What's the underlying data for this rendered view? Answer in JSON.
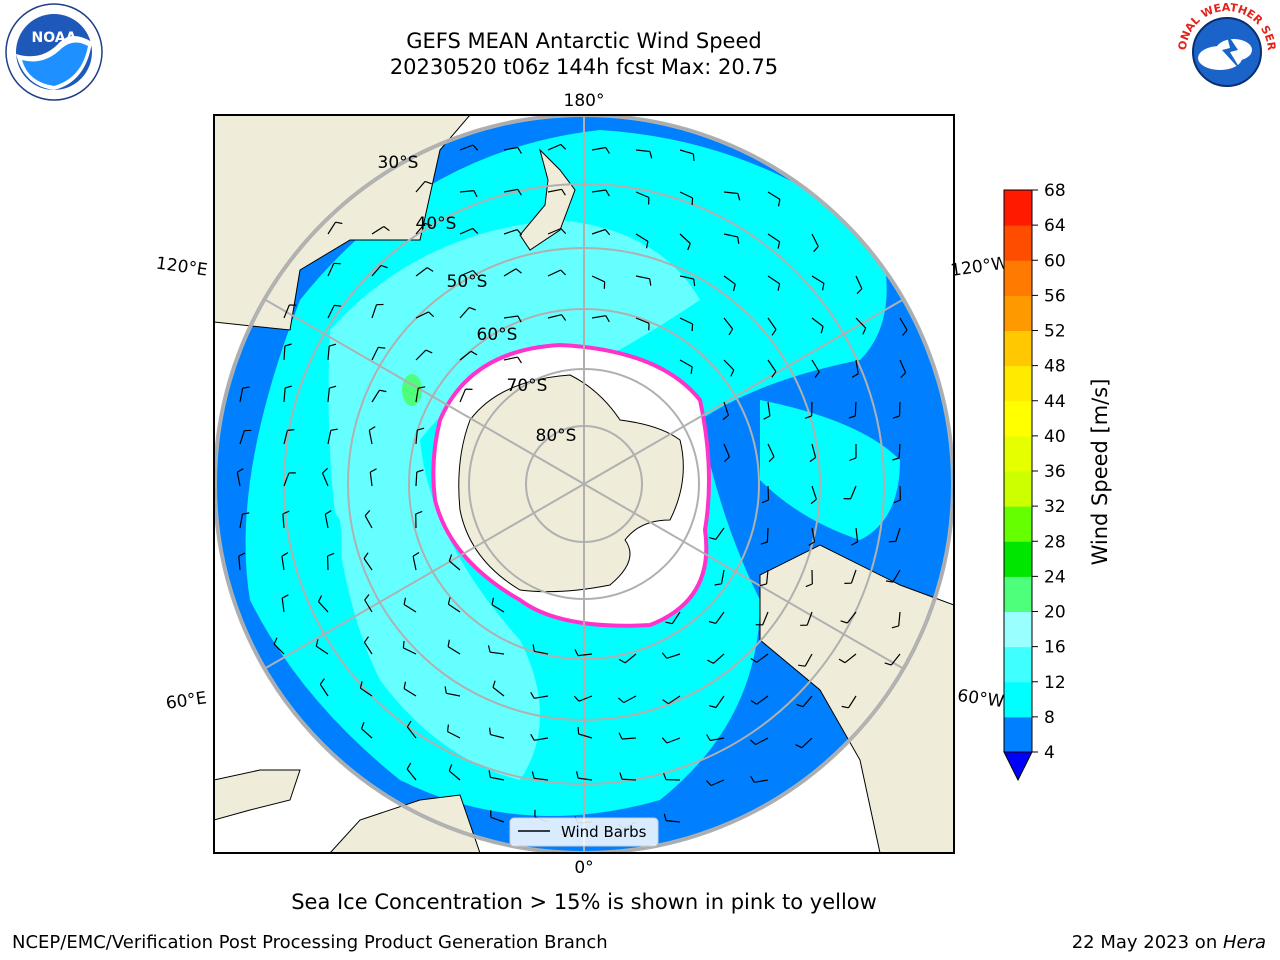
{
  "title": {
    "line1": "GEFS MEAN Antarctic Wind Speed",
    "line2": "20230520 t06z 144h fcst   Max: 20.75"
  },
  "map": {
    "projection": "south-polar-stereographic",
    "lon_labels": [
      "180°",
      "120°E",
      "120°W",
      "60°E",
      "60°W",
      "0°"
    ],
    "lat_labels": [
      "30°S",
      "40°S",
      "50°S",
      "60°S",
      "70°S",
      "80°S"
    ],
    "legend_label": "Wind Barbs",
    "colors": {
      "land": "#efedda",
      "ocean_low": "#0080ff",
      "ocean_mid": "#00ffff",
      "ocean_high": "#66ffff",
      "sea_ice": "#ffffff",
      "ice_edge": "#ff33cc",
      "grid": "#b0b0b0"
    }
  },
  "colorbar": {
    "label": "Wind Speed [m/s]",
    "ticks": [
      "4",
      "8",
      "12",
      "16",
      "20",
      "24",
      "28",
      "32",
      "36",
      "40",
      "44",
      "48",
      "52",
      "56",
      "60",
      "64",
      "68"
    ],
    "colors": [
      "#0080ff",
      "#00ffff",
      "#40ffff",
      "#99ffff",
      "#4dff7a",
      "#00e600",
      "#66ff00",
      "#ccff00",
      "#e6ff00",
      "#ffff00",
      "#ffea00",
      "#ffc800",
      "#ff9900",
      "#ff7a00",
      "#ff4d00",
      "#ff1a00"
    ],
    "extend_min_color": "#0000ff"
  },
  "note": "Sea Ice Concentration > 15% is shown in pink to yellow",
  "footer": {
    "left": "NCEP/EMC/Verification Post Processing Product Generation Branch",
    "right_prefix": "22 May 2023 on ",
    "right_italic": "Hera"
  },
  "logos": {
    "left_text": "NOAA",
    "right_text": "NATIONAL WEATHER SERVICE"
  }
}
